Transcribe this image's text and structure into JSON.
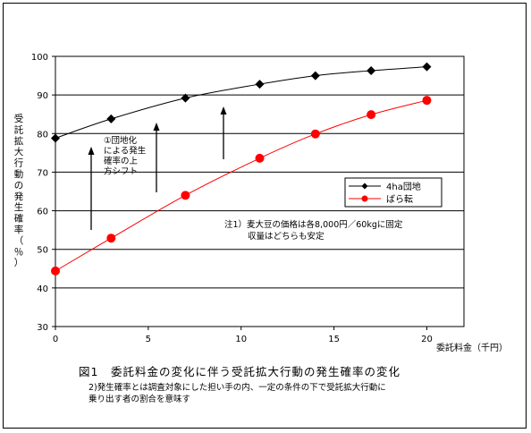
{
  "chart_data": {
    "type": "line",
    "x": [
      0,
      3,
      5,
      7,
      9,
      11,
      14,
      17,
      20
    ],
    "series": [
      {
        "name": "4ha団地",
        "marker": "diamond",
        "color": "#000000",
        "points": [
          [
            0,
            78.8
          ],
          [
            3,
            83.8
          ],
          [
            7,
            89.2
          ],
          [
            11,
            92.8
          ],
          [
            14,
            95.0
          ],
          [
            17,
            96.3
          ],
          [
            20,
            97.3
          ]
        ]
      },
      {
        "name": "ばら転",
        "marker": "circle",
        "color": "#ff0000",
        "points": [
          [
            0,
            44.4
          ],
          [
            3,
            52.9
          ],
          [
            7,
            64.0
          ],
          [
            11,
            73.6
          ],
          [
            14,
            79.9
          ],
          [
            17,
            84.9
          ],
          [
            20,
            88.6
          ]
        ]
      }
    ],
    "xlim": [
      0,
      22
    ],
    "ylim": [
      30,
      100
    ],
    "xticks": [
      0,
      5,
      10,
      15,
      20
    ],
    "yticks": [
      30,
      40,
      50,
      60,
      70,
      80,
      90,
      100
    ],
    "xlabel": "委託料金（千円）",
    "ylabel": "受託拡大行動の発生確率（％）",
    "ylabel_chars": [
      "受",
      "託",
      "拡",
      "大",
      "行",
      "動",
      "の",
      "発",
      "生",
      "確",
      "率",
      "（",
      "％",
      "）"
    ],
    "grid": "horizontal",
    "legend_position": "right",
    "annotations": {
      "shift": [
        "①団地化",
        "による発生",
        "確率の上",
        "方シフト"
      ],
      "note": [
        "注1）麦大豆の価格は各8,000円／60kgに固定",
        "収量はどちらも安定"
      ]
    }
  },
  "caption": "図1　委託料金の変化に伴う受託拡大行動の発生確率の変化",
  "footnotes": [
    "2)発生確率とは調査対象にした担い手の内、一定の条件の下で受託拡大行動に",
    "乗り出す者の割合を意味す"
  ]
}
